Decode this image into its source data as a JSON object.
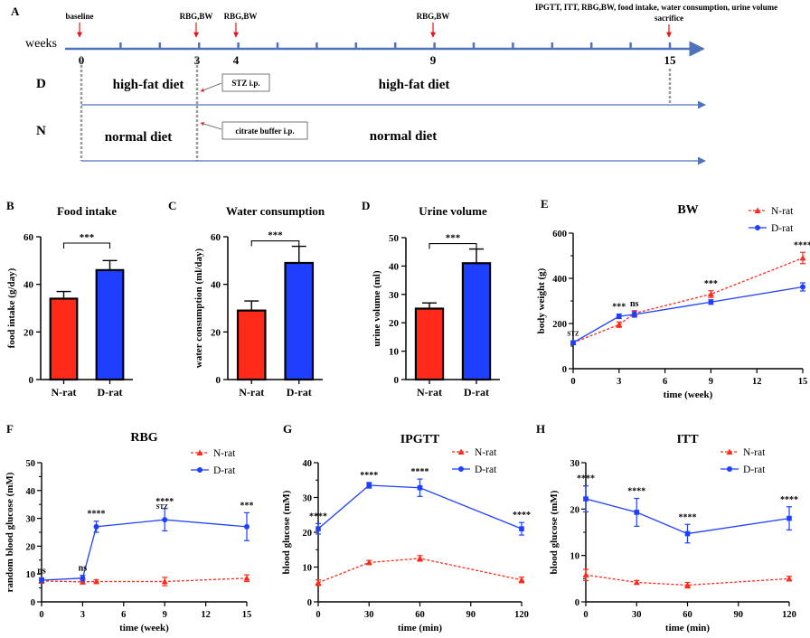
{
  "colors": {
    "n_rat": "#ff2a1a",
    "d_rat": "#1f3fff",
    "timeline": "#4f72bd",
    "arrow_red": "#e8141a",
    "dotted_gray": "#9a9a9a"
  },
  "timeline": {
    "panel_label": "A",
    "axis_label": "weeks",
    "tick_labels": [
      "0",
      "3",
      "4",
      "9",
      "15"
    ],
    "events": [
      "baseline",
      "RBG,BW",
      "RBG,BW",
      "RBG,BW",
      "IPGTT,  ITT, RBG,BW, food intake, water consumption, urine volume"
    ],
    "sacrifice": "sacrifice",
    "group_d": {
      "label": "D",
      "diet_before": "high-fat diet",
      "diet_after": "high-fat diet",
      "injection": "STZ i.p."
    },
    "group_n": {
      "label": "N",
      "diet_before": "normal diet",
      "diet_after": "normal diet",
      "injection": "citrate buffer  i.p."
    }
  },
  "chart_data": [
    {
      "panel": "B",
      "type": "bar",
      "title": "Food intake",
      "ylabel": "food intake (g/day)",
      "categories": [
        "N-rat",
        "D-rat"
      ],
      "values": [
        34,
        46
      ],
      "errors": [
        3,
        4
      ],
      "ylim": [
        0,
        60
      ],
      "yticks": [
        "0",
        "20",
        "40",
        "60"
      ],
      "significance": "***"
    },
    {
      "panel": "C",
      "type": "bar",
      "title": "Water consumption",
      "ylabel": "water consumption (ml/day)",
      "categories": [
        "N-rat",
        "D-rat"
      ],
      "values": [
        29,
        49
      ],
      "errors": [
        4,
        7
      ],
      "ylim": [
        0,
        60
      ],
      "yticks": [
        "0",
        "20",
        "40",
        "60"
      ],
      "significance": "***"
    },
    {
      "panel": "D",
      "type": "bar",
      "title": "Urine volume",
      "ylabel": "urine volume (ml)",
      "categories": [
        "N-rat",
        "D-rat"
      ],
      "values": [
        25,
        41
      ],
      "errors": [
        2,
        5
      ],
      "ylim": [
        0,
        50
      ],
      "yticks": [
        "0",
        "10",
        "20",
        "30",
        "40",
        "50"
      ],
      "significance": "***"
    },
    {
      "panel": "E",
      "type": "line",
      "title": "BW",
      "xlabel": "time (week)",
      "ylabel": "body weight (g)",
      "xlim": [
        0,
        15
      ],
      "ylim": [
        0,
        600
      ],
      "xticks": [
        "0",
        "3",
        "6",
        "9",
        "12",
        "15"
      ],
      "yticks": [
        "0",
        "200",
        "400",
        "600"
      ],
      "legend": [
        "N-rat",
        "D-rat"
      ],
      "x": [
        0,
        3,
        4,
        9,
        15
      ],
      "series": [
        {
          "name": "N-rat",
          "values": [
            115,
            195,
            245,
            330,
            490
          ],
          "errors": [
            8,
            12,
            12,
            15,
            25
          ]
        },
        {
          "name": "D-rat",
          "values": [
            115,
            232,
            240,
            295,
            362
          ],
          "errors": [
            8,
            10,
            12,
            10,
            18
          ]
        }
      ],
      "annotations": [
        {
          "x": 0,
          "label": "STZ"
        },
        {
          "x": 3,
          "label": "***"
        },
        {
          "x": 4,
          "label": "ns"
        },
        {
          "x": 9,
          "label": "***"
        },
        {
          "x": 15,
          "label": "****"
        }
      ]
    },
    {
      "panel": "F",
      "type": "line",
      "title": "RBG",
      "xlabel": "time (week)",
      "ylabel": "random blood glucose (mM)",
      "xlim": [
        0,
        15
      ],
      "ylim": [
        0,
        50
      ],
      "xticks": [
        "0",
        "3",
        "6",
        "9",
        "12",
        "15"
      ],
      "yticks": [
        "0",
        "10",
        "20",
        "30",
        "40",
        "50"
      ],
      "legend": [
        "N-rat",
        "D-rat"
      ],
      "x": [
        0,
        3,
        4,
        9,
        15
      ],
      "series": [
        {
          "name": "N-rat",
          "values": [
            7.5,
            7.2,
            7.3,
            7.3,
            8.5
          ],
          "errors": [
            0.8,
            0.8,
            0.6,
            1.5,
            1.2
          ]
        },
        {
          "name": "D-rat",
          "values": [
            7.8,
            8.5,
            27,
            29.5,
            27
          ],
          "errors": [
            0.8,
            1.0,
            2.0,
            4.0,
            5.0
          ]
        }
      ],
      "annotations": [
        {
          "x": 0,
          "label": "ns"
        },
        {
          "x": 3,
          "label": "ns"
        },
        {
          "x": 4,
          "label": "****"
        },
        {
          "x": 9,
          "label": "****"
        },
        {
          "x": 9,
          "label": "STZ"
        },
        {
          "x": 15,
          "label": "***"
        }
      ]
    },
    {
      "panel": "G",
      "type": "line",
      "title": "IPGTT",
      "xlabel": "time    (min)",
      "ylabel": "blood glucose  (mM)",
      "xlim": [
        0,
        120
      ],
      "ylim": [
        0,
        40
      ],
      "xticks": [
        "0",
        "30",
        "60",
        "90",
        "120"
      ],
      "yticks": [
        "0",
        "10",
        "20",
        "30",
        "40"
      ],
      "legend": [
        "N-rat",
        "D-rat"
      ],
      "x": [
        0,
        30,
        60,
        120
      ],
      "series": [
        {
          "name": "N-rat",
          "values": [
            5.5,
            11.3,
            12.5,
            6.3
          ],
          "errors": [
            0.8,
            0.6,
            0.8,
            0.8
          ]
        },
        {
          "name": "D-rat",
          "values": [
            21,
            33.5,
            32.8,
            21
          ],
          "errors": [
            1.5,
            0.8,
            2.5,
            1.8
          ]
        }
      ],
      "annotations": [
        {
          "x": 0,
          "label": "****"
        },
        {
          "x": 30,
          "label": "****"
        },
        {
          "x": 60,
          "label": "****"
        },
        {
          "x": 120,
          "label": "****"
        }
      ]
    },
    {
      "panel": "H",
      "type": "line",
      "title": "ITT",
      "xlabel": "time    (min)",
      "ylabel": "blood glucose  (mM)",
      "xlim": [
        0,
        120
      ],
      "ylim": [
        0,
        30
      ],
      "xticks": [
        "0",
        "30",
        "60",
        "90",
        "120"
      ],
      "yticks": [
        "0",
        "10",
        "20",
        "30"
      ],
      "legend": [
        "N-rat",
        "D-rat"
      ],
      "x": [
        0,
        30,
        60,
        120
      ],
      "series": [
        {
          "name": "N-rat",
          "values": [
            5.8,
            4.2,
            3.6,
            5
          ],
          "errors": [
            1.2,
            0.4,
            0.6,
            0.5
          ]
        },
        {
          "name": "D-rat",
          "values": [
            22.2,
            19.3,
            14.7,
            18
          ],
          "errors": [
            2.8,
            3.0,
            2.0,
            2.5
          ]
        }
      ],
      "annotations": [
        {
          "x": 0,
          "label": "****"
        },
        {
          "x": 30,
          "label": "****"
        },
        {
          "x": 60,
          "label": "****"
        },
        {
          "x": 120,
          "label": "****"
        }
      ]
    }
  ]
}
